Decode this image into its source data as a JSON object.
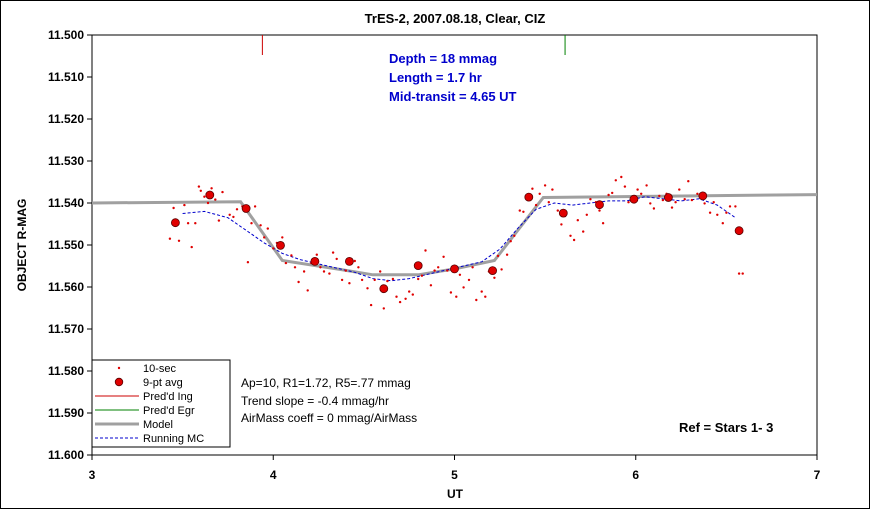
{
  "chart_data": {
    "type": "scatter",
    "title": "TrES-2, 2007.08.18, Clear, CIZ",
    "xlabel": "UT",
    "ylabel": "OBJECT R-MAG",
    "xlim": [
      3,
      7
    ],
    "ylim": [
      11.5,
      11.6
    ],
    "y_inverted": true,
    "xticks": [
      "3",
      "4",
      "5",
      "6",
      "7"
    ],
    "yticks": [
      "11.500",
      "11.510",
      "11.520",
      "11.530",
      "11.540",
      "11.550",
      "11.560",
      "11.570",
      "11.580",
      "11.590",
      "11.600"
    ],
    "info_lines": [
      "Depth = 18 mmag",
      "Length = 1.7 hr",
      "Mid-transit = 4.65 UT"
    ],
    "notes": [
      "Ap=10, R1=1.72, R5=.77 mmag",
      "Trend slope = -0.4 mmag/hr",
      "AirMass coeff = 0 mmag/AirMass"
    ],
    "ref_label": "Ref = Stars 1- 3",
    "legend": [
      "10-sec",
      "9-pt avg",
      "Pred'd Ing",
      "Pred'd Egr",
      "Model",
      "Running MC"
    ],
    "colors": {
      "points": "#e00000",
      "ingress": "#cc0000",
      "egress": "#008000",
      "model": "#a0a0a0",
      "running_mc": "#0000cc"
    },
    "predicted_ingress_ut": 3.94,
    "predicted_egress_ut": 5.61,
    "model": {
      "x": [
        3.0,
        3.82,
        4.05,
        4.35,
        4.55,
        4.8,
        5.0,
        5.22,
        5.49,
        7.0
      ],
      "y": [
        11.54,
        11.5397,
        11.5537,
        11.5557,
        11.5571,
        11.5571,
        11.5557,
        11.5537,
        11.5387,
        11.538
      ]
    },
    "running_mc": {
      "x": [
        3.5,
        3.62,
        3.75,
        3.85,
        3.95,
        4.05,
        4.15,
        4.25,
        4.35,
        4.45,
        4.55,
        4.65,
        4.75,
        4.85,
        4.95,
        5.05,
        5.15,
        5.25,
        5.35,
        5.45,
        5.55,
        5.65,
        5.75,
        5.85,
        5.95,
        6.05,
        6.15,
        6.25,
        6.35,
        6.45,
        6.55
      ],
      "y": [
        11.5425,
        11.542,
        11.5435,
        11.5465,
        11.5495,
        11.552,
        11.5535,
        11.5545,
        11.5555,
        11.5565,
        11.558,
        11.5585,
        11.558,
        11.557,
        11.556,
        11.555,
        11.554,
        11.551,
        11.546,
        11.5415,
        11.54,
        11.5405,
        11.54,
        11.5395,
        11.5395,
        11.5385,
        11.539,
        11.5395,
        11.539,
        11.5405,
        11.5435
      ]
    },
    "avg9": {
      "x": [
        3.46,
        3.65,
        3.85,
        4.04,
        4.23,
        4.42,
        4.61,
        4.8,
        5.0,
        5.21,
        5.41,
        5.6,
        5.8,
        5.99,
        6.18,
        6.37,
        6.57
      ],
      "y": [
        11.5447,
        11.5381,
        11.5413,
        11.5501,
        11.5539,
        11.5539,
        11.5604,
        11.5549,
        11.5557,
        11.5561,
        11.5386,
        11.5424,
        11.5404,
        11.5391,
        11.5387,
        11.5383,
        11.5466
      ]
    },
    "sec10": {
      "x": [
        3.43,
        3.45,
        3.48,
        3.51,
        3.53,
        3.55,
        3.57,
        3.59,
        3.6,
        3.62,
        3.64,
        3.66,
        3.68,
        3.7,
        3.72,
        3.76,
        3.78,
        3.8,
        3.83,
        3.86,
        3.88,
        3.9,
        3.93,
        3.95,
        3.97,
        4.0,
        4.02,
        4.05,
        4.07,
        4.1,
        4.12,
        4.14,
        4.17,
        4.19,
        4.21,
        4.24,
        4.26,
        4.28,
        4.31,
        4.33,
        4.35,
        4.38,
        4.4,
        4.42,
        4.45,
        4.47,
        4.49,
        4.52,
        4.54,
        4.56,
        4.59,
        4.61,
        4.63,
        4.66,
        4.68,
        4.7,
        4.73,
        4.75,
        4.77,
        4.8,
        4.82,
        4.84,
        4.87,
        4.89,
        4.91,
        4.94,
        4.96,
        4.98,
        5.01,
        5.03,
        5.05,
        5.08,
        5.1,
        5.12,
        5.15,
        5.17,
        5.19,
        5.22,
        5.24,
        5.26,
        5.29,
        5.31,
        5.33,
        5.36,
        5.38,
        5.4,
        5.43,
        5.45,
        5.47,
        5.5,
        5.52,
        5.54,
        5.57,
        5.59,
        5.61,
        5.64,
        5.66,
        5.68,
        5.71,
        5.73,
        5.75,
        5.78,
        5.8,
        5.82,
        5.85,
        5.87,
        5.89,
        5.92,
        5.94,
        5.96,
        5.99,
        6.01,
        6.03,
        6.06,
        6.08,
        6.1,
        6.13,
        6.15,
        6.17,
        6.2,
        6.22,
        6.24,
        6.27,
        6.29,
        6.31,
        6.34,
        6.36,
        6.38,
        6.41,
        6.43,
        6.45,
        6.48,
        6.5,
        6.52,
        6.55,
        6.57,
        6.59
      ],
      "y": [
        11.5485,
        11.5412,
        11.549,
        11.5405,
        11.5448,
        11.5505,
        11.5448,
        11.5361,
        11.5371,
        11.5385,
        11.54,
        11.5365,
        11.5392,
        11.5442,
        11.5374,
        11.5428,
        11.5433,
        11.5415,
        11.5408,
        11.5541,
        11.5448,
        11.5408,
        11.5453,
        11.5482,
        11.5461,
        11.5508,
        11.5495,
        11.5482,
        11.5543,
        11.5525,
        11.5553,
        11.5588,
        11.5563,
        11.5608,
        11.5543,
        11.5523,
        11.5553,
        11.5563,
        11.5568,
        11.5518,
        11.5533,
        11.5583,
        11.5561,
        11.5591,
        11.5538,
        11.5553,
        11.5583,
        11.5603,
        11.5643,
        11.5583,
        11.5563,
        11.5651,
        11.5586,
        11.5581,
        11.5623,
        11.5636,
        11.5628,
        11.5611,
        11.5618,
        11.5581,
        11.5573,
        11.5513,
        11.5596,
        11.5561,
        11.5553,
        11.5528,
        11.5561,
        11.5613,
        11.5623,
        11.5571,
        11.5601,
        11.5583,
        11.5553,
        11.5631,
        11.5611,
        11.5623,
        11.5563,
        11.5578,
        11.5526,
        11.5558,
        11.5523,
        11.5491,
        11.5478,
        11.5418,
        11.5421,
        11.5386,
        11.5366,
        11.5405,
        11.5378,
        11.5358,
        11.5398,
        11.5368,
        11.5418,
        11.5451,
        11.5431,
        11.5478,
        11.5488,
        11.5441,
        11.5468,
        11.5428,
        11.5391,
        11.5398,
        11.5418,
        11.5448,
        11.5381,
        11.5376,
        11.5346,
        11.5338,
        11.5361,
        11.5398,
        11.5388,
        11.5368,
        11.5378,
        11.5358,
        11.5401,
        11.5413,
        11.5383,
        11.5393,
        11.5378,
        11.5411,
        11.5398,
        11.5368,
        11.5391,
        11.5348,
        11.5393,
        11.5378,
        11.5381,
        11.5401,
        11.5423,
        11.5398,
        11.5428,
        11.5448,
        11.5423,
        11.5408,
        11.5408,
        11.5568,
        11.5568
      ]
    }
  }
}
